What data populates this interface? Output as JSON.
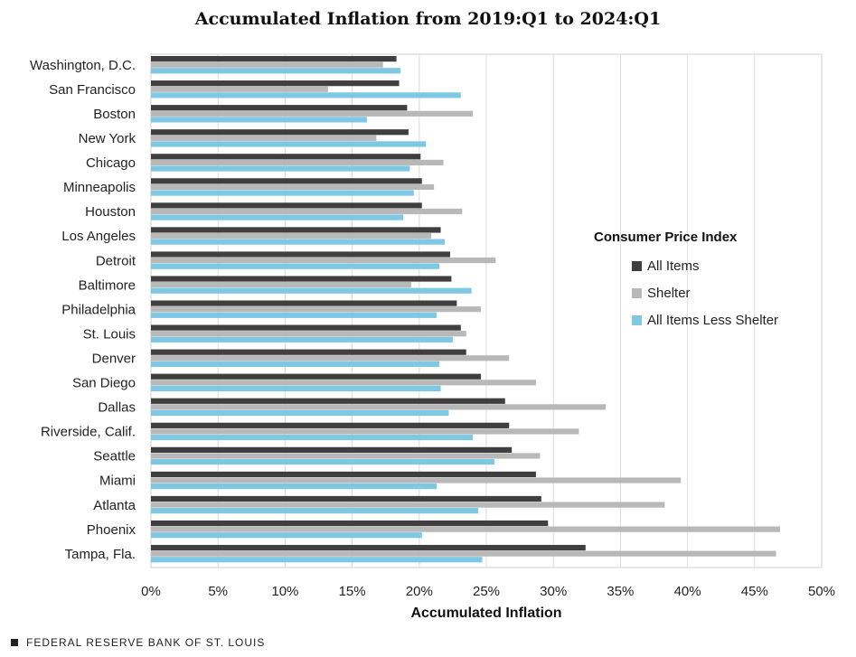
{
  "chart_data": {
    "type": "bar",
    "orientation": "horizontal",
    "title": "Accumulated Inflation from 2019:Q1 to 2024:Q1",
    "xlabel": "Accumulated  Inflation",
    "ylabel": "",
    "xlim": [
      0,
      50
    ],
    "x_tick_labels": [
      "0%",
      "5%",
      "10%",
      "15%",
      "20%",
      "25%",
      "30%",
      "35%",
      "40%",
      "45%",
      "50%"
    ],
    "grid": true,
    "legend_title": "Consumer Price Index",
    "legend_position": "right",
    "categories": [
      "Washington, D.C.",
      "San Francisco",
      "Boston",
      "New York",
      "Chicago",
      "Minneapolis",
      "Houston",
      "Los Angeles",
      "Detroit",
      "Baltimore",
      "Philadelphia",
      "St. Louis",
      "Denver",
      "San Diego",
      "Dallas",
      "Riverside, Calif.",
      "Seattle",
      "Miami",
      "Atlanta",
      "Phoenix",
      "Tampa, Fla."
    ],
    "series": [
      {
        "name": "All Items",
        "color": "#3f3f3f",
        "values": [
          18.3,
          18.5,
          19.1,
          19.2,
          20.1,
          20.2,
          20.2,
          21.6,
          22.3,
          22.4,
          22.8,
          23.1,
          23.5,
          24.6,
          26.4,
          26.7,
          26.9,
          28.7,
          29.1,
          29.6,
          32.4
        ]
      },
      {
        "name": "Shelter",
        "color": "#b8b8b8",
        "values": [
          17.3,
          13.2,
          24.0,
          16.8,
          21.8,
          21.1,
          23.2,
          20.9,
          25.7,
          19.4,
          24.6,
          23.5,
          26.7,
          28.7,
          33.9,
          31.9,
          29.0,
          39.5,
          38.3,
          46.9,
          46.6
        ]
      },
      {
        "name": "All Items Less Shelter",
        "color": "#7ec8e3",
        "values": [
          18.6,
          23.1,
          16.1,
          20.5,
          19.3,
          19.6,
          18.8,
          21.9,
          21.5,
          23.9,
          21.3,
          22.5,
          21.5,
          21.6,
          22.2,
          24.0,
          25.6,
          21.3,
          24.4,
          20.2,
          24.7
        ]
      }
    ]
  },
  "footer": {
    "source": "FEDERAL RESERVE BANK OF ST. LOUIS"
  }
}
